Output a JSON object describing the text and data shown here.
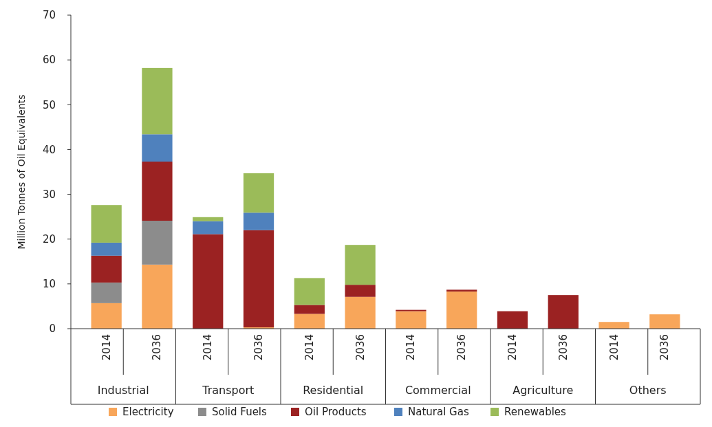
{
  "chart_data": {
    "type": "bar",
    "stacked": true,
    "ylabel": "Million Tonnes of Oil Equivalents",
    "categories": [
      "2014",
      "2036",
      "2014",
      "2036",
      "2014",
      "2036",
      "2014",
      "2036",
      "2014",
      "2036",
      "2014",
      "2036"
    ],
    "annotations": [
      "Industrial",
      "Transport",
      "Residential",
      "Commercial",
      "Agriculture",
      "Others"
    ],
    "series": [
      {
        "name": "Electricity",
        "color": "#f8a65a",
        "values": [
          5.7,
          14.3,
          0,
          0.3,
          3.3,
          7.1,
          3.9,
          8.3,
          0,
          0,
          1.5,
          3.2
        ]
      },
      {
        "name": "Solid Fuels",
        "color": "#8c8c8c",
        "values": [
          4.6,
          9.8,
          0,
          0,
          0,
          0,
          0,
          0,
          0,
          0,
          0,
          0
        ]
      },
      {
        "name": "Oil Products",
        "color": "#9b2222",
        "values": [
          6.0,
          13.2,
          21.1,
          21.7,
          2.0,
          2.7,
          0.3,
          0.4,
          3.9,
          7.5,
          0,
          0
        ]
      },
      {
        "name": "Natural Gas",
        "color": "#4f81bd",
        "values": [
          2.9,
          6.1,
          2.9,
          3.9,
          0,
          0,
          0,
          0,
          0,
          0,
          0,
          0
        ]
      },
      {
        "name": "Renewables",
        "color": "#9bbb59",
        "values": [
          8.4,
          14.8,
          0.9,
          8.8,
          6.0,
          8.9,
          0,
          0,
          0,
          0,
          0,
          0
        ]
      }
    ],
    "ylim": [
      0,
      70
    ],
    "yticks": [
      0,
      10,
      20,
      30,
      40,
      50,
      60,
      70
    ],
    "legend": "bottom"
  }
}
